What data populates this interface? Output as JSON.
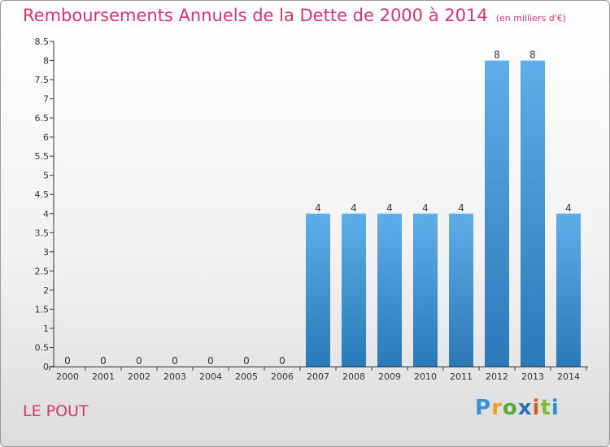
{
  "header": {
    "title": "Remboursements Annuels de la Dette de 2000 à 2014",
    "unit": "(en milliers d'€)"
  },
  "footer": {
    "commune": "LE POUT",
    "logo": "Proxiti"
  },
  "colors": {
    "title": "#d2366b",
    "bar_top": "#5aacea",
    "bar_bottom": "#2a79b8"
  },
  "chart_data": {
    "type": "bar",
    "title": "Remboursements Annuels de la Dette de 2000 à 2014",
    "subtitle": "(en milliers d'€)",
    "categories": [
      "2000",
      "2001",
      "2002",
      "2003",
      "2004",
      "2005",
      "2006",
      "2007",
      "2008",
      "2009",
      "2010",
      "2011",
      "2012",
      "2013",
      "2014"
    ],
    "values": [
      0,
      0,
      0,
      0,
      0,
      0,
      0,
      4,
      4,
      4,
      4,
      4,
      8,
      8,
      4
    ],
    "ylim": [
      0,
      8.5
    ],
    "yticks": [
      "0",
      "0.5",
      "1",
      "1.5",
      "2",
      "2.5",
      "3",
      "3.5",
      "4",
      "4.5",
      "5",
      "5.5",
      "6",
      "6.5",
      "7",
      "7.5",
      "8",
      "8.5"
    ],
    "grid": false,
    "legend": "none"
  }
}
